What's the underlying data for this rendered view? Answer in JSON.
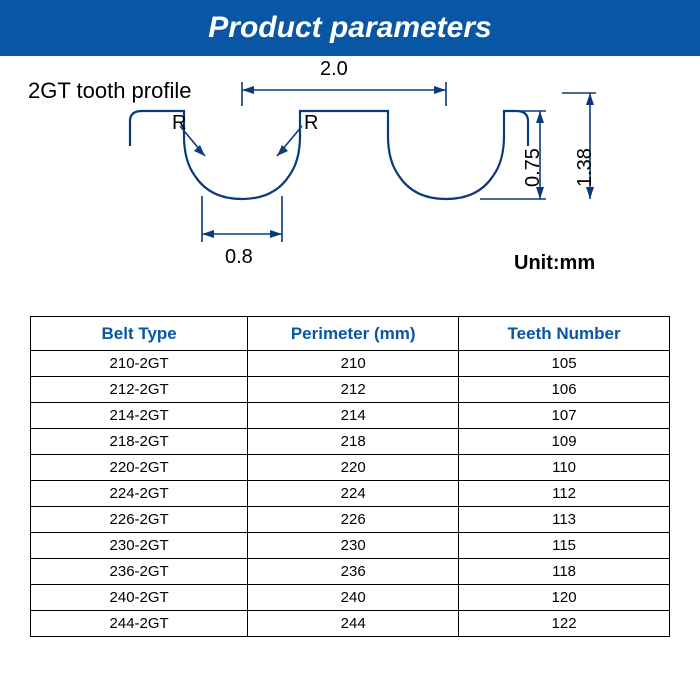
{
  "title": {
    "text": "Product parameters",
    "bg": "#0856a4",
    "color": "#ffffff",
    "fontsize": 30
  },
  "diagram": {
    "title": "2GT tooth profile",
    "title_fontsize": 22,
    "unit": "Unit:mm",
    "unit_fontsize": 20,
    "stroke_color": "#0a3a7a",
    "stroke_width": 2.2,
    "dim_stroke": "#0a3a7a",
    "labels": {
      "pitch": "2.0",
      "tooth_width": "0.8",
      "tooth_depth": "0.75",
      "total_depth": "1.38",
      "radius": "R"
    },
    "label_fontsize": 20
  },
  "table": {
    "header_color": "#0856a4",
    "header_fontsize": 17,
    "body_fontsize": 15,
    "columns": [
      "Belt Type",
      "Perimeter (mm)",
      "Teeth Number"
    ],
    "rows": [
      [
        "210-2GT",
        "210",
        "105"
      ],
      [
        "212-2GT",
        "212",
        "106"
      ],
      [
        "214-2GT",
        "214",
        "107"
      ],
      [
        "218-2GT",
        "218",
        "109"
      ],
      [
        "220-2GT",
        "220",
        "110"
      ],
      [
        "224-2GT",
        "224",
        "112"
      ],
      [
        "226-2GT",
        "226",
        "113"
      ],
      [
        "230-2GT",
        "230",
        "115"
      ],
      [
        "236-2GT",
        "236",
        "118"
      ],
      [
        "240-2GT",
        "240",
        "120"
      ],
      [
        "244-2GT",
        "244",
        "122"
      ]
    ]
  }
}
